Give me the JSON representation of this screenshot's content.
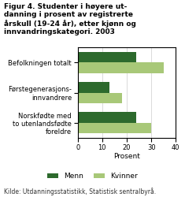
{
  "chart_data": {
    "type": "bar",
    "orientation": "horizontal",
    "title": "Figur 4. Studenter i høyere ut-\ndanning i prosent av registrerte\nårskull (19-24 år), etter kjønn og\ninnvandringskategori. 2003",
    "categories": [
      "Befolkningen totalt",
      "Førstegenerasjons-\ninnvandrere",
      "Norskfødte med\nto utenlandsfødte\nforeldre"
    ],
    "series": [
      {
        "name": "Menn",
        "color": "#2d6a2d",
        "values": [
          24,
          13,
          24
        ]
      },
      {
        "name": "Kvinner",
        "color": "#a8c878",
        "values": [
          35,
          18,
          30
        ]
      }
    ],
    "xlabel": "Prosent",
    "xlim": [
      0,
      40
    ],
    "xticks": [
      0,
      10,
      20,
      30,
      40
    ],
    "grid": true,
    "legend": "lower center",
    "source": "Kilde: Utdanningsstatistikk, Statistisk sentralbyrå."
  }
}
